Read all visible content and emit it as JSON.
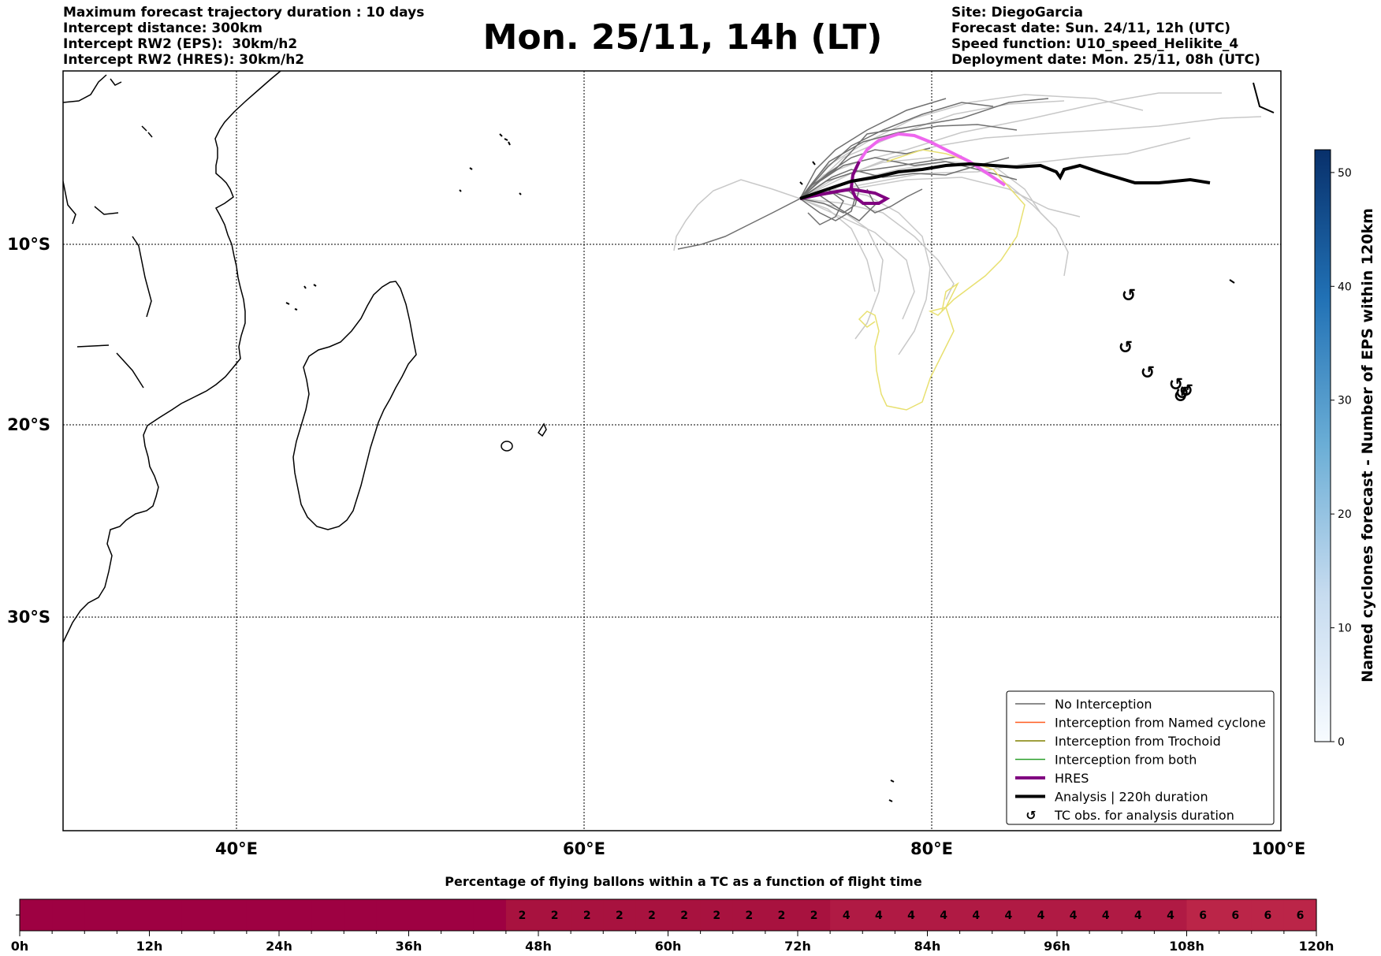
{
  "header": {
    "left": [
      "Maximum forecast trajectory duration : 10 days",
      "Intercept distance: 300km",
      "Intercept RW2 (EPS):  30km/h2",
      "Intercept RW2 (HRES): 30km/h2"
    ],
    "title": "Mon. 25/11, 14h (LT)",
    "right": [
      "Site: DiegoGarcia",
      "Forecast date: Sun. 24/11, 12h (UTC)",
      "Speed function: U10_speed_Helikite_4",
      "Deployment date: Mon. 25/11, 08h (UTC)"
    ]
  },
  "map": {
    "lon_ticks": [
      "40°E",
      "60°E",
      "80°E",
      "100°E"
    ],
    "lat_ticks": [
      "10°S",
      "20°S",
      "30°S"
    ],
    "lon_range": [
      30,
      100
    ],
    "lat_range": [
      -43,
      -1
    ]
  },
  "legend": {
    "items": [
      {
        "label": "No Interception",
        "color": "#666666",
        "kind": "line"
      },
      {
        "label": "Interception from Named cyclone",
        "color": "#ff5a1f",
        "kind": "line"
      },
      {
        "label": "Interception from Trochoid",
        "color": "#808000",
        "kind": "line"
      },
      {
        "label": "Interception from both",
        "color": "#2ca02c",
        "kind": "line"
      },
      {
        "label": "HRES",
        "color": "#800080",
        "kind": "thick"
      },
      {
        "label": "Analysis | 220h duration",
        "color": "#000000",
        "kind": "thick"
      },
      {
        "label": "TC obs. for analysis duration",
        "color": "#000000",
        "kind": "symbol"
      }
    ]
  },
  "colorbar": {
    "label": "Named cyclones forecast - Number of EPS within 120km",
    "ticks": [
      "0",
      "10",
      "20",
      "30",
      "40",
      "50"
    ],
    "range": [
      0,
      52
    ],
    "color_low": "#f7fbff",
    "color_high": "#08306b"
  },
  "chart_data": {
    "type": "heatmap",
    "title": "Percentage of flying ballons within a TC as a function of flight time",
    "x_tick_labels": [
      "0h",
      "12h",
      "24h",
      "36h",
      "48h",
      "60h",
      "72h",
      "84h",
      "96h",
      "108h",
      "120h"
    ],
    "x_range_hours": [
      0,
      120
    ],
    "bin_hours": 3,
    "values": [
      0,
      0,
      0,
      0,
      0,
      0,
      0,
      0,
      0,
      0,
      0,
      0,
      0,
      0,
      0,
      2,
      2,
      2,
      2,
      2,
      2,
      2,
      2,
      2,
      2,
      4,
      4,
      4,
      4,
      4,
      4,
      4,
      4,
      4,
      4,
      4,
      6,
      6,
      6,
      6
    ],
    "color_zero": "#9e0142",
    "color_low": "#a8123f",
    "color_mid": "#b01a44",
    "color_high": "#bb2548",
    "tc_obs_symbol": "↺"
  }
}
